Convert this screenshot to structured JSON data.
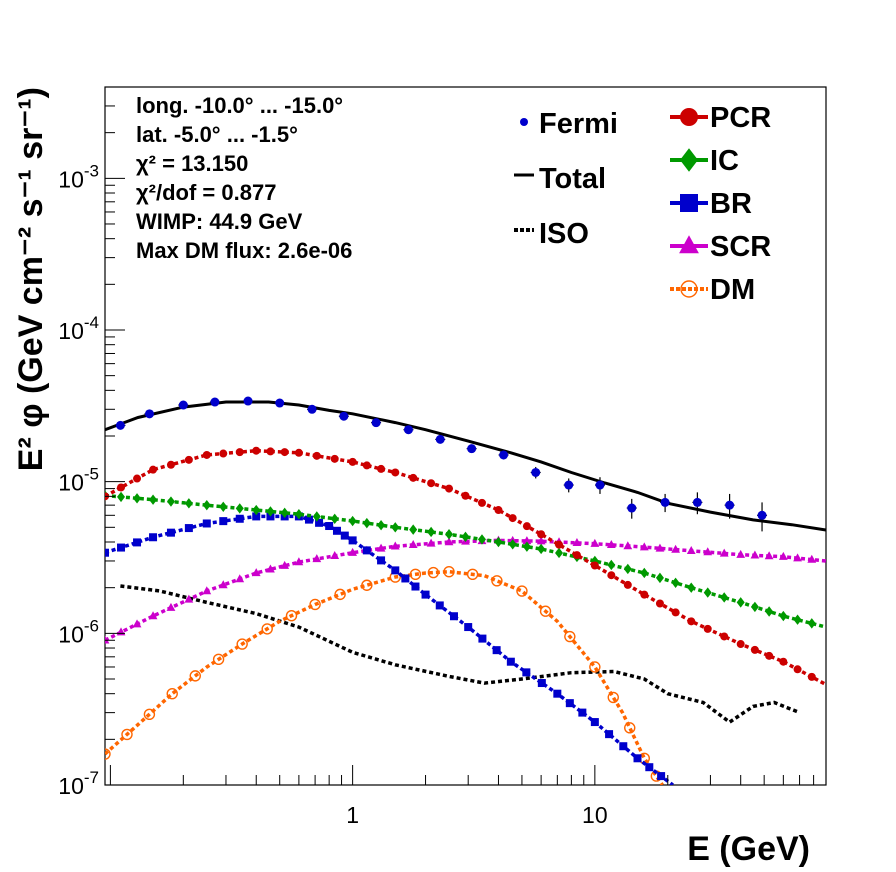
{
  "chart_data": {
    "type": "line",
    "xlabel": "E (GeV)",
    "ylabel": "E² φ (GeV cm⁻² s⁻¹ sr⁻¹)",
    "xscale": "log",
    "yscale": "log",
    "xlim": [
      0.095,
      90
    ],
    "ylim": [
      1e-07,
      0.004
    ],
    "x_tick_labels": [
      {
        "value": 1,
        "label": "1"
      },
      {
        "value": 10,
        "label": "10"
      }
    ],
    "y_tick_labels": [
      {
        "value": 1e-07,
        "base": "10",
        "exp": "-7"
      },
      {
        "value": 1e-06,
        "base": "10",
        "exp": "-6"
      },
      {
        "value": 1e-05,
        "base": "10",
        "exp": "-5"
      },
      {
        "value": 0.0001,
        "base": "10",
        "exp": "-4"
      },
      {
        "value": 0.001,
        "base": "10",
        "exp": "-3"
      }
    ],
    "info_box": [
      "long. -10.0° ... -15.0°",
      "lat. -5.0° ... -1.5°",
      "χ² = 13.150",
      "χ²/dof = 0.877",
      "WIMP: 44.9 GeV",
      "Max DM flux: 2.6e-06"
    ],
    "legend_placement": "top-right",
    "colors": {
      "Fermi": "#0000cc",
      "Total": "#000000",
      "ISO": "#000000",
      "PCR": "#cc0000",
      "IC": "#009900",
      "BR": "#0000cc",
      "SCR": "#cc00cc",
      "DM": "#ff6600"
    },
    "series": [
      {
        "name": "Fermi",
        "style": "points-errorbars",
        "points": [
          {
            "x": 0.11,
            "y": 2.35e-05,
            "err": 5e-07
          },
          {
            "x": 0.145,
            "y": 2.8e-05,
            "err": 5e-07
          },
          {
            "x": 0.2,
            "y": 3.2e-05,
            "err": 5e-07
          },
          {
            "x": 0.27,
            "y": 3.35e-05,
            "err": 5e-07
          },
          {
            "x": 0.37,
            "y": 3.4e-05,
            "err": 5e-07
          },
          {
            "x": 0.5,
            "y": 3.3e-05,
            "err": 5e-07
          },
          {
            "x": 0.68,
            "y": 3e-05,
            "err": 5e-07
          },
          {
            "x": 0.92,
            "y": 2.7e-05,
            "err": 5e-07
          },
          {
            "x": 1.25,
            "y": 2.45e-05,
            "err": 5e-07
          },
          {
            "x": 1.7,
            "y": 2.2e-05,
            "err": 5e-07
          },
          {
            "x": 2.3,
            "y": 1.9e-05,
            "err": 5e-07
          },
          {
            "x": 3.1,
            "y": 1.65e-05,
            "err": 5e-07
          },
          {
            "x": 4.2,
            "y": 1.5e-05,
            "err": 1e-06
          },
          {
            "x": 5.7,
            "y": 1.15e-05,
            "err": 1e-06
          },
          {
            "x": 7.8,
            "y": 9.5e-06,
            "err": 1e-06
          },
          {
            "x": 10.5,
            "y": 9.5e-06,
            "err": 1.2e-06
          },
          {
            "x": 14.2,
            "y": 6.7e-06,
            "err": 1e-06
          },
          {
            "x": 19.5,
            "y": 7.3e-06,
            "err": 1e-06
          },
          {
            "x": 26.5,
            "y": 7.3e-06,
            "err": 1.2e-06
          },
          {
            "x": 36,
            "y": 7e-06,
            "err": 1.3e-06
          },
          {
            "x": 49,
            "y": 6e-06,
            "err": 1.3e-06
          }
        ]
      },
      {
        "name": "Total",
        "style": "solid",
        "points": [
          {
            "x": 0.095,
            "y": 2.2e-05
          },
          {
            "x": 0.13,
            "y": 2.65e-05
          },
          {
            "x": 0.2,
            "y": 3.1e-05
          },
          {
            "x": 0.3,
            "y": 3.35e-05
          },
          {
            "x": 0.45,
            "y": 3.35e-05
          },
          {
            "x": 0.6,
            "y": 3.2e-05
          },
          {
            "x": 0.8,
            "y": 2.95e-05
          },
          {
            "x": 1.0,
            "y": 2.8e-05
          },
          {
            "x": 1.5,
            "y": 2.45e-05
          },
          {
            "x": 2.0,
            "y": 2.2e-05
          },
          {
            "x": 3.0,
            "y": 1.85e-05
          },
          {
            "x": 4.5,
            "y": 1.55e-05
          },
          {
            "x": 6.0,
            "y": 1.35e-05
          },
          {
            "x": 8.0,
            "y": 1.15e-05
          },
          {
            "x": 11,
            "y": 9.8e-06
          },
          {
            "x": 15,
            "y": 8.5e-06
          },
          {
            "x": 20,
            "y": 7.2e-06
          },
          {
            "x": 30,
            "y": 6.3e-06
          },
          {
            "x": 45,
            "y": 5.6e-06
          },
          {
            "x": 65,
            "y": 5.2e-06
          },
          {
            "x": 90,
            "y": 4.8e-06
          }
        ]
      },
      {
        "name": "ISO",
        "style": "dotted",
        "points": [
          {
            "x": 0.11,
            "y": 2.05e-06
          },
          {
            "x": 0.16,
            "y": 1.9e-06
          },
          {
            "x": 0.25,
            "y": 1.6e-06
          },
          {
            "x": 0.4,
            "y": 1.35e-06
          },
          {
            "x": 0.6,
            "y": 1.1e-06
          },
          {
            "x": 1.0,
            "y": 7.5e-07
          },
          {
            "x": 1.5,
            "y": 6.2e-07
          },
          {
            "x": 2.5,
            "y": 5.2e-07
          },
          {
            "x": 3.5,
            "y": 4.7e-07
          },
          {
            "x": 5.0,
            "y": 5e-07
          },
          {
            "x": 8.0,
            "y": 5.5e-07
          },
          {
            "x": 12,
            "y": 5.6e-07
          },
          {
            "x": 16,
            "y": 5e-07
          },
          {
            "x": 20,
            "y": 4e-07
          },
          {
            "x": 28,
            "y": 3.5e-07
          },
          {
            "x": 36,
            "y": 2.6e-07
          },
          {
            "x": 45,
            "y": 3.3e-07
          },
          {
            "x": 55,
            "y": 3.5e-07
          },
          {
            "x": 70,
            "y": 3e-07
          }
        ]
      },
      {
        "name": "PCR",
        "style": "dash-markers",
        "points": [
          {
            "x": 0.095,
            "y": 8e-06
          },
          {
            "x": 0.15,
            "y": 1.2e-05
          },
          {
            "x": 0.25,
            "y": 1.5e-05
          },
          {
            "x": 0.4,
            "y": 1.6e-05
          },
          {
            "x": 0.6,
            "y": 1.55e-05
          },
          {
            "x": 1.0,
            "y": 1.35e-05
          },
          {
            "x": 1.5,
            "y": 1.15e-05
          },
          {
            "x": 2.5,
            "y": 9e-06
          },
          {
            "x": 4.0,
            "y": 6.5e-06
          },
          {
            "x": 6.0,
            "y": 4.5e-06
          },
          {
            "x": 10,
            "y": 2.8e-06
          },
          {
            "x": 16,
            "y": 1.8e-06
          },
          {
            "x": 25,
            "y": 1.2e-06
          },
          {
            "x": 40,
            "y": 8.5e-07
          },
          {
            "x": 60,
            "y": 6.5e-07
          },
          {
            "x": 90,
            "y": 4.6e-07
          }
        ]
      },
      {
        "name": "IC",
        "style": "dash-markers",
        "points": [
          {
            "x": 0.095,
            "y": 8.1e-06
          },
          {
            "x": 0.15,
            "y": 7.6e-06
          },
          {
            "x": 0.25,
            "y": 7e-06
          },
          {
            "x": 0.4,
            "y": 6.5e-06
          },
          {
            "x": 0.6,
            "y": 6.1e-06
          },
          {
            "x": 1.0,
            "y": 5.5e-06
          },
          {
            "x": 1.5,
            "y": 5e-06
          },
          {
            "x": 2.5,
            "y": 4.5e-06
          },
          {
            "x": 4.0,
            "y": 4e-06
          },
          {
            "x": 6.0,
            "y": 3.6e-06
          },
          {
            "x": 10,
            "y": 3e-06
          },
          {
            "x": 16,
            "y": 2.5e-06
          },
          {
            "x": 25,
            "y": 2e-06
          },
          {
            "x": 40,
            "y": 1.6e-06
          },
          {
            "x": 60,
            "y": 1.3e-06
          },
          {
            "x": 90,
            "y": 1.1e-06
          }
        ]
      },
      {
        "name": "BR",
        "style": "dash-markers",
        "points": [
          {
            "x": 0.095,
            "y": 3.4e-06
          },
          {
            "x": 0.15,
            "y": 4.3e-06
          },
          {
            "x": 0.25,
            "y": 5.3e-06
          },
          {
            "x": 0.4,
            "y": 5.9e-06
          },
          {
            "x": 0.6,
            "y": 5.9e-06
          },
          {
            "x": 0.8,
            "y": 5.1e-06
          },
          {
            "x": 1.0,
            "y": 4.1e-06
          },
          {
            "x": 1.5,
            "y": 2.6e-06
          },
          {
            "x": 2.0,
            "y": 1.8e-06
          },
          {
            "x": 3.0,
            "y": 1.1e-06
          },
          {
            "x": 4.5,
            "y": 6.5e-07
          },
          {
            "x": 7.0,
            "y": 4e-07
          },
          {
            "x": 10,
            "y": 2.6e-07
          },
          {
            "x": 15,
            "y": 1.5e-07
          },
          {
            "x": 21,
            "y": 1e-07
          }
        ]
      },
      {
        "name": "SCR",
        "style": "dash-markers",
        "points": [
          {
            "x": 0.095,
            "y": 9e-07
          },
          {
            "x": 0.15,
            "y": 1.3e-06
          },
          {
            "x": 0.25,
            "y": 1.9e-06
          },
          {
            "x": 0.4,
            "y": 2.5e-06
          },
          {
            "x": 0.6,
            "y": 2.95e-06
          },
          {
            "x": 1.0,
            "y": 3.4e-06
          },
          {
            "x": 1.5,
            "y": 3.75e-06
          },
          {
            "x": 2.5,
            "y": 4e-06
          },
          {
            "x": 4.0,
            "y": 4.1e-06
          },
          {
            "x": 6.0,
            "y": 4.05e-06
          },
          {
            "x": 10,
            "y": 3.9e-06
          },
          {
            "x": 16,
            "y": 3.7e-06
          },
          {
            "x": 25,
            "y": 3.5e-06
          },
          {
            "x": 40,
            "y": 3.3e-06
          },
          {
            "x": 60,
            "y": 3.2e-06
          },
          {
            "x": 90,
            "y": 3e-06
          }
        ]
      },
      {
        "name": "DM",
        "style": "dash-open-markers",
        "points": [
          {
            "x": 0.095,
            "y": 1.6e-07
          },
          {
            "x": 0.13,
            "y": 2.5e-07
          },
          {
            "x": 0.18,
            "y": 4e-07
          },
          {
            "x": 0.25,
            "y": 6e-07
          },
          {
            "x": 0.35,
            "y": 8.5e-07
          },
          {
            "x": 0.5,
            "y": 1.2e-06
          },
          {
            "x": 0.7,
            "y": 1.55e-06
          },
          {
            "x": 1.0,
            "y": 1.95e-06
          },
          {
            "x": 1.5,
            "y": 2.35e-06
          },
          {
            "x": 2.0,
            "y": 2.5e-06
          },
          {
            "x": 2.5,
            "y": 2.55e-06
          },
          {
            "x": 3.5,
            "y": 2.4e-06
          },
          {
            "x": 5.0,
            "y": 1.9e-06
          },
          {
            "x": 7.0,
            "y": 1.2e-06
          },
          {
            "x": 10,
            "y": 6e-07
          },
          {
            "x": 13,
            "y": 3e-07
          },
          {
            "x": 16,
            "y": 1.5e-07
          },
          {
            "x": 19,
            "y": 1e-07
          }
        ]
      }
    ],
    "legend": {
      "left": [
        {
          "series": "Fermi",
          "label": "Fermi"
        },
        {
          "series": "Total",
          "label": "Total"
        },
        {
          "series": "ISO",
          "label": "ISO"
        }
      ],
      "right": [
        {
          "series": "PCR",
          "label": "PCR"
        },
        {
          "series": "IC",
          "label": "IC"
        },
        {
          "series": "BR",
          "label": "BR"
        },
        {
          "series": "SCR",
          "label": "SCR"
        },
        {
          "series": "DM",
          "label": "DM"
        }
      ]
    }
  }
}
